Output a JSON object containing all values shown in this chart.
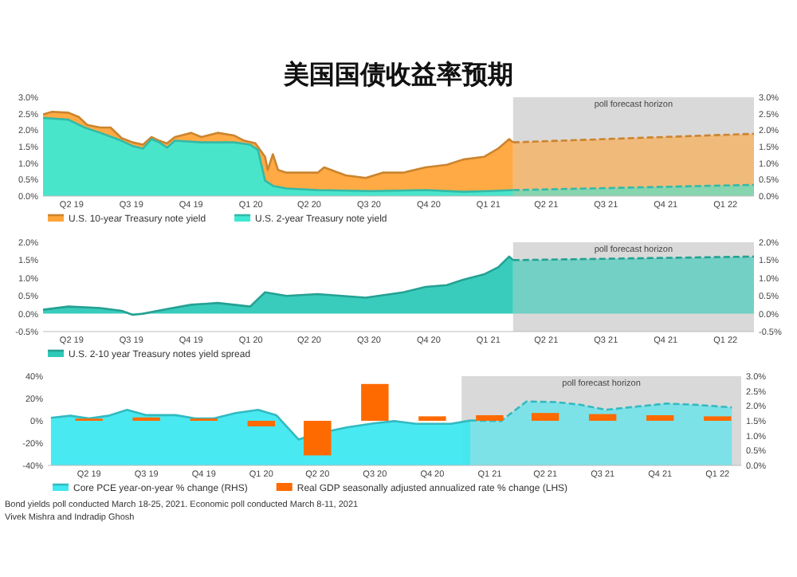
{
  "chart_data": [
    {
      "type": "area",
      "title": "美国国债收益率预期",
      "legend": "bottom",
      "xlim": [
        "2019-04-01",
        "2022-03-31"
      ],
      "xticks": [
        {
          "value": "2019-05-15",
          "label": "Q2 19"
        },
        {
          "value": "2019-08-15",
          "label": "Q3 19"
        },
        {
          "value": "2019-11-15",
          "label": "Q4 19"
        },
        {
          "value": "2020-02-15",
          "label": "Q1 20"
        },
        {
          "value": "2020-05-15",
          "label": "Q2 20"
        },
        {
          "value": "2020-08-15",
          "label": "Q3 20"
        },
        {
          "value": "2020-11-15",
          "label": "Q4 20"
        },
        {
          "value": "2021-02-15",
          "label": "Q1 21"
        },
        {
          "value": "2021-05-15",
          "label": "Q2 21"
        },
        {
          "value": "2021-08-15",
          "label": "Q3 21"
        },
        {
          "value": "2021-11-15",
          "label": "Q4 21"
        },
        {
          "value": "2022-02-15",
          "label": "Q1 22"
        }
      ],
      "ylim": [
        0,
        3
      ],
      "yticks": [
        {
          "value": 0,
          "label": "0.0%"
        },
        {
          "value": 0.5,
          "label": "0.5%"
        },
        {
          "value": 1,
          "label": "1.0%"
        },
        {
          "value": 1.5,
          "label": "1.5%"
        },
        {
          "value": 2,
          "label": "2.0%"
        },
        {
          "value": 2.5,
          "label": "2.5%"
        },
        {
          "value": 3,
          "label": "3.0%"
        }
      ],
      "y2lim": [
        0,
        3
      ],
      "y2ticks": [
        {
          "value": 0,
          "label": "0.0%"
        },
        {
          "value": 0.5,
          "label": "0.5%"
        },
        {
          "value": 1,
          "label": "1.0%"
        },
        {
          "value": 1.5,
          "label": "1.5%"
        },
        {
          "value": 2,
          "label": "2.0%"
        },
        {
          "value": 2.5,
          "label": "2.5%"
        },
        {
          "value": 3,
          "label": "3.0%"
        }
      ],
      "bands": [
        {
          "axis": "x",
          "from": "2021-03-25",
          "to": "2022-03-31",
          "label": "poll forecast horizon",
          "color": "#d9d9d9"
        }
      ],
      "series": [
        {
          "name": "U.S. 10-year Treasury note yield",
          "color": "#ffa53a",
          "x": [
            "2019-04-01",
            "2019-04-15",
            "2019-05-10",
            "2019-05-26",
            "2019-06-08",
            "2019-06-28",
            "2019-07-14",
            "2019-07-31",
            "2019-08-17",
            "2019-09-02",
            "2019-09-15",
            "2019-09-27",
            "2019-10-09",
            "2019-10-21",
            "2019-11-15",
            "2019-12-01",
            "2019-12-26",
            "2020-01-20",
            "2020-02-05",
            "2020-02-22",
            "2020-03-08",
            "2020-03-12",
            "2020-03-20",
            "2020-03-28",
            "2020-04-10",
            "2020-05-28",
            "2020-06-07",
            "2020-07-10",
            "2020-08-10",
            "2020-09-05",
            "2020-10-07",
            "2020-11-10",
            "2020-12-13",
            "2021-01-07",
            "2021-02-08",
            "2021-03-02",
            "2021-03-19",
            "2021-03-25"
          ],
          "values": [
            2.48,
            2.56,
            2.53,
            2.4,
            2.16,
            2.08,
            2.08,
            1.76,
            1.63,
            1.56,
            1.79,
            1.68,
            1.6,
            1.79,
            1.92,
            1.79,
            1.92,
            1.84,
            1.68,
            1.6,
            1.19,
            0.79,
            1.27,
            0.79,
            0.71,
            0.71,
            0.87,
            0.63,
            0.55,
            0.71,
            0.71,
            0.87,
            0.95,
            1.11,
            1.19,
            1.44,
            1.73,
            1.63
          ]
        },
        {
          "color": "#ffa53a",
          "line_style": "dashed",
          "x": [
            "2021-03-25",
            "2022-03-31"
          ],
          "values": [
            1.63,
            1.89
          ]
        },
        {
          "name": "U.S. 2-year Treasury note yield",
          "color": "#3fe8d2",
          "x": [
            "2019-04-01",
            "2019-05-10",
            "2019-06-04",
            "2019-06-28",
            "2019-07-31",
            "2019-08-17",
            "2019-09-02",
            "2019-09-15",
            "2019-09-27",
            "2019-10-09",
            "2019-10-21",
            "2019-12-01",
            "2020-01-20",
            "2020-02-14",
            "2020-02-26",
            "2020-03-08",
            "2020-03-20",
            "2020-04-10",
            "2020-05-28",
            "2020-08-19",
            "2020-11-10",
            "2021-01-07",
            "2021-02-16",
            "2021-03-25"
          ],
          "values": [
            2.37,
            2.32,
            2.08,
            1.92,
            1.68,
            1.52,
            1.44,
            1.73,
            1.63,
            1.47,
            1.68,
            1.63,
            1.63,
            1.56,
            1.4,
            0.47,
            0.31,
            0.23,
            0.18,
            0.15,
            0.18,
            0.13,
            0.15,
            0.18
          ]
        },
        {
          "color": "#3fe8d2",
          "line_style": "dashed",
          "x": [
            "2021-03-25",
            "2022-03-31"
          ],
          "values": [
            0.18,
            0.34
          ]
        }
      ]
    },
    {
      "type": "area",
      "legend": "bottom",
      "xlim": [
        "2019-04-01",
        "2022-03-31"
      ],
      "xticks": [
        {
          "value": "2019-05-15",
          "label": "Q2 19"
        },
        {
          "value": "2019-08-15",
          "label": "Q3 19"
        },
        {
          "value": "2019-11-15",
          "label": "Q4 19"
        },
        {
          "value": "2020-02-15",
          "label": "Q1 20"
        },
        {
          "value": "2020-05-15",
          "label": "Q2 20"
        },
        {
          "value": "2020-08-15",
          "label": "Q3 20"
        },
        {
          "value": "2020-11-15",
          "label": "Q4 20"
        },
        {
          "value": "2021-02-15",
          "label": "Q1 21"
        },
        {
          "value": "2021-05-15",
          "label": "Q2 21"
        },
        {
          "value": "2021-08-15",
          "label": "Q3 21"
        },
        {
          "value": "2021-11-15",
          "label": "Q4 21"
        },
        {
          "value": "2022-02-15",
          "label": "Q1 22"
        }
      ],
      "ylim": [
        -0.5,
        2
      ],
      "yticks": [
        {
          "value": -0.5,
          "label": "-0.5%"
        },
        {
          "value": 0,
          "label": "0.0%"
        },
        {
          "value": 0.5,
          "label": "0.5%"
        },
        {
          "value": 1,
          "label": "1.0%"
        },
        {
          "value": 1.5,
          "label": "1.5%"
        },
        {
          "value": 2,
          "label": "2.0%"
        }
      ],
      "y2lim": [
        -0.5,
        2
      ],
      "y2ticks": [
        {
          "value": -0.5,
          "label": "-0.5%"
        },
        {
          "value": 0,
          "label": "0.0%"
        },
        {
          "value": 0.5,
          "label": "0.5%"
        },
        {
          "value": 1,
          "label": "1.0%"
        },
        {
          "value": 1.5,
          "label": "1.5%"
        },
        {
          "value": 2,
          "label": "2.0%"
        }
      ],
      "bands": [
        {
          "axis": "x",
          "from": "2021-03-25",
          "to": "2022-03-31",
          "label": "poll forecast horizon",
          "color": "#d9d9d9"
        }
      ],
      "series": [
        {
          "name": "U.S. 2-10 year Treasury notes yield spread",
          "color": "#2ec9b8",
          "x": [
            "2019-04-01",
            "2019-05-10",
            "2019-06-28",
            "2019-07-31",
            "2019-08-17",
            "2019-09-02",
            "2019-10-09",
            "2019-11-15",
            "2019-12-26",
            "2020-02-14",
            "2020-03-08",
            "2020-04-10",
            "2020-05-28",
            "2020-08-10",
            "2020-10-07",
            "2020-11-10",
            "2020-12-13",
            "2021-01-07",
            "2021-02-08",
            "2021-03-02",
            "2021-03-19",
            "2021-03-25"
          ],
          "values": [
            0.11,
            0.2,
            0.16,
            0.08,
            -0.03,
            0.0,
            0.13,
            0.25,
            0.3,
            0.2,
            0.6,
            0.5,
            0.55,
            0.45,
            0.6,
            0.75,
            0.8,
            0.95,
            1.1,
            1.3,
            1.6,
            1.5
          ]
        },
        {
          "color": "#2ec9b8",
          "line_style": "dashed",
          "x": [
            "2021-03-25",
            "2022-03-31"
          ],
          "values": [
            1.5,
            1.6
          ]
        }
      ]
    },
    {
      "type": "bar",
      "legend": "bottom",
      "xlim": [
        "2019-03-10",
        "2022-03-25"
      ],
      "xticks": [
        {
          "value": "2019-05-15",
          "label": "Q2 19"
        },
        {
          "value": "2019-08-15",
          "label": "Q3 19"
        },
        {
          "value": "2019-11-15",
          "label": "Q4 19"
        },
        {
          "value": "2020-02-15",
          "label": "Q1 20"
        },
        {
          "value": "2020-05-15",
          "label": "Q2 20"
        },
        {
          "value": "2020-08-15",
          "label": "Q3 20"
        },
        {
          "value": "2020-11-15",
          "label": "Q4 20"
        },
        {
          "value": "2021-02-15",
          "label": "Q1 21"
        },
        {
          "value": "2021-05-15",
          "label": "Q2 21"
        },
        {
          "value": "2021-08-15",
          "label": "Q3 21"
        },
        {
          "value": "2021-11-15",
          "label": "Q4 21"
        },
        {
          "value": "2022-02-15",
          "label": "Q1 22"
        }
      ],
      "ylim": [
        -40,
        40
      ],
      "yticks": [
        {
          "value": -40,
          "label": "-40%"
        },
        {
          "value": -20,
          "label": "-20%"
        },
        {
          "value": 0,
          "label": "0%"
        },
        {
          "value": 20,
          "label": "20%"
        },
        {
          "value": 40,
          "label": "40%"
        }
      ],
      "y2lim": [
        0,
        3
      ],
      "y2ticks": [
        {
          "value": 0,
          "label": "0.0%"
        },
        {
          "value": 0.5,
          "label": "0.5%"
        },
        {
          "value": 1,
          "label": "1.0%"
        },
        {
          "value": 1.5,
          "label": "1.5%"
        },
        {
          "value": 2,
          "label": "2.0%"
        },
        {
          "value": 2.5,
          "label": "2.5%"
        },
        {
          "value": 3,
          "label": "3.0%"
        }
      ],
      "bands": [
        {
          "axis": "x",
          "from": "2021-01-01",
          "to": "2022-03-25",
          "label": "poll forecast horizon",
          "color": "#d9d9d9"
        }
      ],
      "annotations": [
        "Bond yields poll conducted March 18-25, 2021. Economic poll conducted March 8-11, 2021",
        "Vivek Mishra and Indradip Ghosh"
      ],
      "series": [
        {
          "name": "Core PCE year-on-year % change (RHS)",
          "type": "area",
          "axis": "y2",
          "color": "#3fe8f0",
          "x": [
            "2019-03-15",
            "2019-04-15",
            "2019-05-15",
            "2019-06-15",
            "2019-07-15",
            "2019-08-15",
            "2019-10-01",
            "2019-11-01",
            "2019-12-01",
            "2020-01-05",
            "2020-02-10",
            "2020-03-10",
            "2020-04-15",
            "2020-05-10",
            "2020-07-01",
            "2020-08-15",
            "2020-09-15",
            "2020-10-20",
            "2020-12-15",
            "2021-01-15"
          ],
          "values": [
            1.6,
            1.67,
            1.58,
            1.67,
            1.87,
            1.69,
            1.69,
            1.58,
            1.58,
            1.76,
            1.87,
            1.69,
            0.87,
            1.05,
            1.28,
            1.42,
            1.49,
            1.4,
            1.4,
            1.51
          ]
        },
        {
          "type": "area",
          "axis": "y2",
          "color": "#3fe8f0",
          "line_style": "dashed",
          "x": [
            "2021-01-15",
            "2021-03-05",
            "2021-04-15",
            "2021-06-01",
            "2021-07-10",
            "2021-08-20",
            "2021-10-10",
            "2021-11-25",
            "2022-01-10",
            "2022-03-10"
          ],
          "values": [
            1.51,
            1.49,
            2.15,
            2.13,
            2.04,
            1.87,
            1.98,
            2.08,
            2.04,
            1.95
          ]
        },
        {
          "name": "Real GDP seasonally adjusted annualized rate % change (LHS)",
          "color": "#ff6a00",
          "x": [
            "2019-05-15",
            "2019-08-15",
            "2019-11-15",
            "2020-02-15",
            "2020-05-15",
            "2020-08-15",
            "2020-11-15",
            "2021-02-15",
            "2021-05-15",
            "2021-08-15",
            "2021-11-15",
            "2022-02-15"
          ],
          "values": [
            2,
            3,
            2,
            -5,
            -31,
            33,
            4,
            5,
            7,
            6,
            5,
            4
          ]
        }
      ]
    }
  ]
}
